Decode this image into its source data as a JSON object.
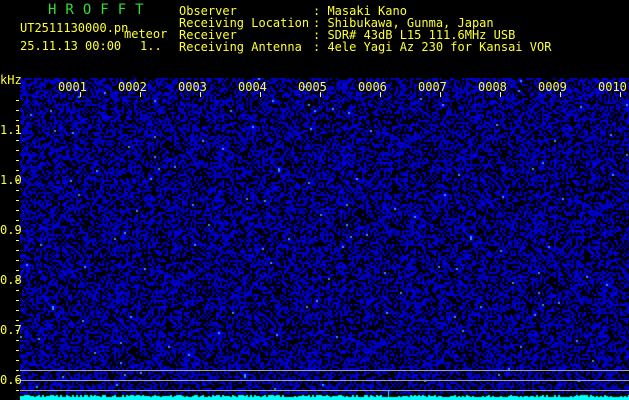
{
  "header": {
    "app_title": "HROFFT",
    "file_name": "UT2511130000.pn",
    "mode": "meteor",
    "datetime": "25.11.13 00:00",
    "page": "1..",
    "info": [
      {
        "label": "Observer",
        "value": ": Masaki Kano"
      },
      {
        "label": "Receiving Location",
        "value": ": Shibukawa, Gunma, Japan"
      },
      {
        "label": "Receiver",
        "value": ": SDR# 43dB L15 111.6MHz USB"
      },
      {
        "label": "Receiving Antenna",
        "value": ": 4ele Yagi Az 230 for Kansai VOR"
      }
    ]
  },
  "axis": {
    "y_unit": "kHz",
    "x_labels": [
      "0001",
      "0002",
      "0003",
      "0004",
      "0005",
      "0006",
      "0007",
      "0008",
      "0009",
      "0010"
    ],
    "y_labels": [
      "1.1",
      "1.0",
      "0.9",
      "0.8",
      "0.7",
      "0.6"
    ]
  },
  "colors": {
    "text": "#ffff33",
    "title": "#33dd33",
    "noise": "#1a1aff",
    "signal": "#00ffff",
    "marker_line": "#a0a0a0"
  }
}
